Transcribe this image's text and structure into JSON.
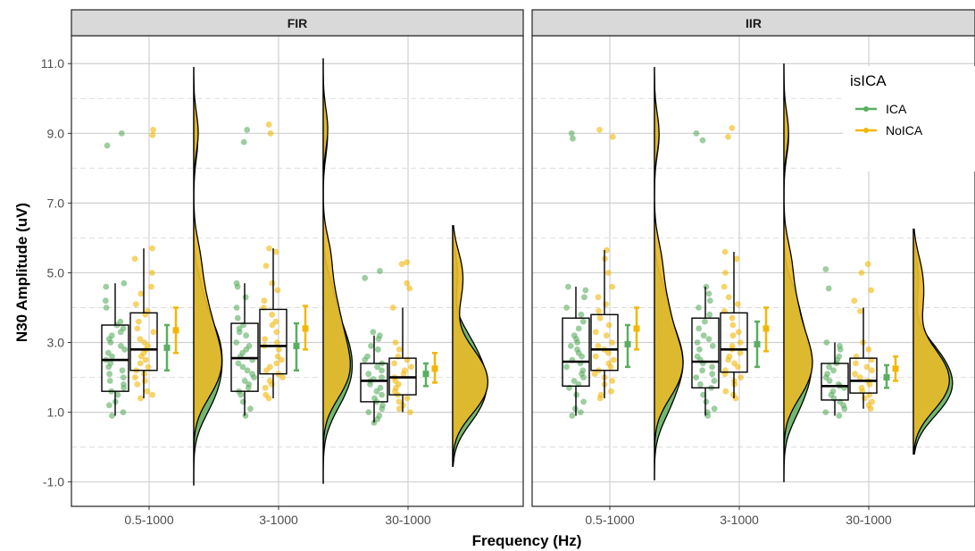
{
  "chart_data": {
    "type": "raincloud",
    "xlabel": "Frequency (Hz)",
    "ylabel": "N30 Amplitude (uV)",
    "ylim": [
      -1.7,
      11.8
    ],
    "yticks": [
      "-1.0",
      "1.0",
      "3.0",
      "5.0",
      "7.0",
      "9.0",
      "11.0"
    ],
    "categories": [
      "0.5-1000",
      "3-1000",
      "30-1000"
    ],
    "legend": {
      "title": "isICA",
      "entries": [
        "ICA",
        "NoICA"
      ],
      "placement": "top-right"
    },
    "colors": {
      "ICA": "#5aae61",
      "NoICA": "#f2b705",
      "cloud_fill": "#e6b82a",
      "cloud_green": "#6ab46a"
    },
    "panels": [
      {
        "strip": "FIR",
        "groups": [
          {
            "category": "0.5-1000",
            "ICA": {
              "q1": 1.6,
              "median": 2.5,
              "q3": 3.5,
              "whisker_low": 0.9,
              "whisker_high": 4.7,
              "mean": 2.85,
              "ci": [
                2.2,
                3.5
              ],
              "points": [
                8.65,
                9.0,
                4.7,
                4.6,
                4.2,
                4.0,
                3.6,
                3.5,
                3.4,
                3.3,
                3.2,
                3.1,
                3.0,
                2.9,
                2.8,
                2.7,
                2.6,
                2.5,
                2.4,
                2.3,
                2.2,
                2.1,
                2.0,
                1.9,
                1.8,
                1.7,
                1.6,
                1.5,
                1.3,
                1.2,
                1.0,
                0.9
              ]
            },
            "NoICA": {
              "q1": 2.2,
              "median": 2.8,
              "q3": 3.85,
              "whisker_low": 1.4,
              "whisker_high": 5.7,
              "mean": 3.35,
              "ci": [
                2.7,
                4.0
              ],
              "points": [
                9.1,
                8.95,
                5.7,
                5.4,
                5.0,
                4.6,
                4.4,
                4.1,
                3.9,
                3.8,
                3.6,
                3.4,
                3.3,
                3.1,
                3.0,
                2.9,
                2.8,
                2.7,
                2.6,
                2.5,
                2.4,
                2.3,
                2.2,
                2.1,
                2.0,
                1.9,
                1.8,
                1.6,
                1.5,
                1.4
              ]
            },
            "cloud_range": [
              -1.1,
              10.9
            ]
          },
          {
            "category": "3-1000",
            "ICA": {
              "q1": 1.6,
              "median": 2.55,
              "q3": 3.55,
              "whisker_low": 0.9,
              "whisker_high": 4.7,
              "mean": 2.9,
              "ci": [
                2.2,
                3.55
              ],
              "points": [
                9.1,
                8.75,
                4.7,
                4.6,
                4.3,
                4.0,
                3.7,
                3.5,
                3.4,
                3.3,
                3.2,
                3.0,
                2.9,
                2.8,
                2.7,
                2.6,
                2.5,
                2.4,
                2.3,
                2.2,
                2.1,
                2.0,
                1.9,
                1.8,
                1.7,
                1.6,
                1.5,
                1.3,
                1.1,
                0.9
              ]
            },
            "NoICA": {
              "q1": 2.1,
              "median": 2.9,
              "q3": 3.95,
              "whisker_low": 1.4,
              "whisker_high": 5.7,
              "mean": 3.4,
              "ci": [
                2.8,
                4.05
              ],
              "points": [
                9.25,
                9.0,
                5.7,
                5.6,
                5.2,
                4.7,
                4.5,
                4.2,
                4.0,
                3.8,
                3.6,
                3.5,
                3.3,
                3.1,
                3.0,
                2.9,
                2.8,
                2.6,
                2.5,
                2.4,
                2.3,
                2.2,
                2.1,
                2.0,
                1.9,
                1.8,
                1.7,
                1.5,
                1.4
              ]
            },
            "cloud_range": [
              -1.05,
              11.15
            ]
          },
          {
            "category": "30-1000",
            "ICA": {
              "q1": 1.3,
              "median": 1.9,
              "q3": 2.4,
              "whisker_low": 0.7,
              "whisker_high": 3.2,
              "mean": 2.1,
              "ci": [
                1.75,
                2.4
              ],
              "points": [
                5.05,
                4.85,
                3.3,
                3.2,
                3.1,
                2.9,
                2.8,
                2.6,
                2.5,
                2.4,
                2.3,
                2.2,
                2.1,
                2.0,
                1.95,
                1.9,
                1.8,
                1.7,
                1.6,
                1.5,
                1.4,
                1.3,
                1.2,
                1.1,
                1.0,
                0.9,
                0.8,
                0.7
              ]
            },
            "NoICA": {
              "q1": 1.5,
              "median": 2.0,
              "q3": 2.55,
              "whisker_low": 1.0,
              "whisker_high": 4.0,
              "mean": 2.25,
              "ci": [
                1.85,
                2.7
              ],
              "points": [
                5.3,
                5.25,
                4.7,
                4.55,
                4.0,
                3.0,
                2.8,
                2.6,
                2.5,
                2.4,
                2.3,
                2.2,
                2.1,
                2.0,
                1.9,
                1.8,
                1.7,
                1.6,
                1.5,
                1.4,
                1.3,
                1.2,
                1.1,
                1.0
              ]
            },
            "cloud_range": [
              -0.55,
              6.35
            ]
          }
        ]
      },
      {
        "strip": "IIR",
        "groups": [
          {
            "category": "0.5-1000",
            "ICA": {
              "q1": 1.75,
              "median": 2.45,
              "q3": 3.7,
              "whisker_low": 0.9,
              "whisker_high": 4.6,
              "mean": 2.95,
              "ci": [
                2.3,
                3.5
              ],
              "points": [
                8.85,
                9.0,
                4.6,
                4.5,
                4.3,
                4.0,
                3.8,
                3.6,
                3.4,
                3.2,
                3.1,
                3.0,
                2.9,
                2.8,
                2.7,
                2.6,
                2.5,
                2.4,
                2.3,
                2.2,
                2.1,
                2.0,
                1.9,
                1.8,
                1.7,
                1.5,
                1.3,
                1.1,
                1.0,
                0.9
              ]
            },
            "NoICA": {
              "q1": 2.2,
              "median": 2.8,
              "q3": 3.8,
              "whisker_low": 1.4,
              "whisker_high": 5.65,
              "mean": 3.4,
              "ci": [
                2.8,
                4.0
              ],
              "points": [
                9.1,
                8.9,
                5.65,
                5.4,
                5.0,
                4.6,
                4.3,
                4.1,
                3.9,
                3.7,
                3.5,
                3.3,
                3.2,
                3.0,
                2.9,
                2.8,
                2.7,
                2.6,
                2.5,
                2.4,
                2.3,
                2.2,
                2.1,
                2.0,
                1.9,
                1.8,
                1.6,
                1.5,
                1.4
              ]
            },
            "cloud_range": [
              -0.95,
              10.9
            ]
          },
          {
            "category": "3-1000",
            "ICA": {
              "q1": 1.7,
              "median": 2.45,
              "q3": 3.7,
              "whisker_low": 0.9,
              "whisker_high": 4.6,
              "mean": 2.95,
              "ci": [
                2.3,
                3.6
              ],
              "points": [
                9.0,
                8.8,
                4.6,
                4.4,
                4.2,
                4.0,
                3.8,
                3.6,
                3.4,
                3.2,
                3.1,
                3.0,
                2.9,
                2.8,
                2.6,
                2.5,
                2.4,
                2.3,
                2.2,
                2.1,
                2.0,
                1.9,
                1.8,
                1.7,
                1.5,
                1.3,
                1.1,
                1.0,
                0.9
              ]
            },
            "NoICA": {
              "q1": 2.15,
              "median": 2.8,
              "q3": 3.85,
              "whisker_low": 1.4,
              "whisker_high": 5.6,
              "mean": 3.4,
              "ci": [
                2.75,
                4.0
              ],
              "points": [
                9.15,
                8.9,
                5.6,
                5.4,
                5.0,
                4.6,
                4.3,
                4.1,
                3.9,
                3.7,
                3.5,
                3.3,
                3.2,
                3.0,
                2.9,
                2.8,
                2.7,
                2.6,
                2.5,
                2.4,
                2.3,
                2.2,
                2.1,
                2.0,
                1.9,
                1.8,
                1.6,
                1.5,
                1.4
              ]
            },
            "cloud_range": [
              -1.0,
              11.0
            ]
          },
          {
            "category": "30-1000",
            "ICA": {
              "q1": 1.35,
              "median": 1.75,
              "q3": 2.4,
              "whisker_low": 0.9,
              "whisker_high": 3.0,
              "mean": 2.0,
              "ci": [
                1.7,
                2.35
              ],
              "points": [
                5.1,
                4.55,
                3.0,
                2.9,
                2.8,
                2.6,
                2.5,
                2.4,
                2.3,
                2.2,
                2.1,
                2.0,
                1.9,
                1.8,
                1.75,
                1.7,
                1.6,
                1.5,
                1.4,
                1.3,
                1.2,
                1.1,
                1.0,
                0.9
              ]
            },
            "NoICA": {
              "q1": 1.55,
              "median": 1.9,
              "q3": 2.55,
              "whisker_low": 1.1,
              "whisker_high": 4.0,
              "mean": 2.25,
              "ci": [
                1.9,
                2.6
              ],
              "points": [
                5.25,
                5.0,
                4.5,
                4.2,
                3.9,
                3.0,
                2.8,
                2.6,
                2.5,
                2.4,
                2.3,
                2.2,
                2.1,
                2.0,
                1.9,
                1.8,
                1.7,
                1.6,
                1.5,
                1.4,
                1.3,
                1.2,
                1.1
              ]
            },
            "cloud_range": [
              -0.2,
              6.25
            ]
          }
        ]
      }
    ]
  }
}
